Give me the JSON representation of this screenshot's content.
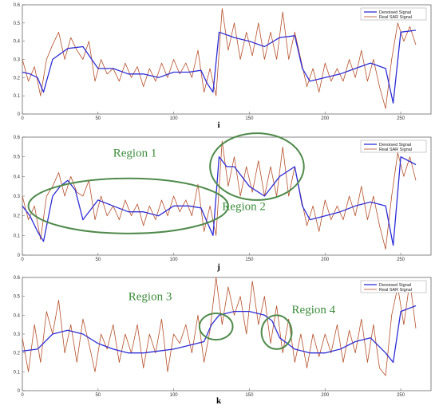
{
  "figure": {
    "colors": {
      "denoised": "#2e2ed8",
      "real": "#b5502a",
      "region": "#4e8a4a",
      "axis": "#666666",
      "background": "#ffffff"
    }
  },
  "chart_data": [
    {
      "type": "line",
      "panel_label": "i",
      "xlim": [
        0,
        270
      ],
      "ylim": [
        0,
        0.6
      ],
      "xticks": [
        "0",
        "50",
        "100",
        "150",
        "200",
        "250"
      ],
      "yticks": [
        "0",
        "0.1",
        "0.2",
        "0.3",
        "0.4",
        "0.5",
        "0.6"
      ],
      "legend": {
        "position": "top-right",
        "entries": [
          "Denoised Signal",
          "Real SAR Signal"
        ]
      },
      "grid": false,
      "series": [
        {
          "name": "Denoised Signal",
          "color": "#2e2ed8",
          "x": [
            0,
            5,
            10,
            14,
            20,
            30,
            40,
            50,
            60,
            70,
            80,
            90,
            100,
            110,
            118,
            122,
            126,
            130,
            140,
            150,
            160,
            170,
            180,
            185,
            190,
            200,
            210,
            220,
            230,
            240,
            245,
            250,
            260
          ],
          "y": [
            0.23,
            0.22,
            0.2,
            0.12,
            0.3,
            0.36,
            0.37,
            0.25,
            0.25,
            0.22,
            0.22,
            0.2,
            0.23,
            0.23,
            0.24,
            0.17,
            0.12,
            0.45,
            0.42,
            0.4,
            0.37,
            0.42,
            0.43,
            0.25,
            0.18,
            0.2,
            0.22,
            0.25,
            0.28,
            0.25,
            0.06,
            0.45,
            0.46
          ]
        },
        {
          "name": "Real SAR Signal",
          "color": "#b5502a",
          "x": [
            0,
            4,
            8,
            12,
            16,
            20,
            24,
            28,
            32,
            36,
            40,
            44,
            48,
            52,
            56,
            60,
            64,
            68,
            72,
            76,
            80,
            84,
            88,
            92,
            96,
            100,
            104,
            108,
            112,
            116,
            120,
            124,
            128,
            132,
            136,
            140,
            144,
            148,
            152,
            156,
            160,
            164,
            168,
            172,
            176,
            180,
            184,
            188,
            192,
            196,
            200,
            204,
            208,
            212,
            216,
            220,
            224,
            228,
            232,
            236,
            240,
            244,
            248,
            252,
            256,
            260
          ],
          "y": [
            0.3,
            0.18,
            0.26,
            0.1,
            0.3,
            0.38,
            0.45,
            0.3,
            0.42,
            0.35,
            0.3,
            0.4,
            0.18,
            0.3,
            0.22,
            0.25,
            0.18,
            0.28,
            0.2,
            0.26,
            0.15,
            0.25,
            0.18,
            0.28,
            0.2,
            0.3,
            0.22,
            0.28,
            0.2,
            0.35,
            0.12,
            0.25,
            0.1,
            0.58,
            0.35,
            0.5,
            0.3,
            0.45,
            0.32,
            0.5,
            0.3,
            0.45,
            0.3,
            0.56,
            0.3,
            0.45,
            0.3,
            0.15,
            0.25,
            0.12,
            0.28,
            0.18,
            0.25,
            0.18,
            0.3,
            0.2,
            0.35,
            0.18,
            0.3,
            0.15,
            0.03,
            0.3,
            0.5,
            0.4,
            0.48,
            0.38
          ]
        }
      ],
      "regions": []
    },
    {
      "type": "line",
      "panel_label": "j",
      "xlim": [
        0,
        270
      ],
      "ylim": [
        0,
        0.6
      ],
      "xticks": [
        "0",
        "50",
        "100",
        "150",
        "200",
        "250"
      ],
      "yticks": [
        "0",
        "0.1",
        "0.2",
        "0.3",
        "0.4",
        "0.5",
        "0.6"
      ],
      "legend": {
        "position": "top-right",
        "entries": [
          "Denoised Signal",
          "Real SAR Signal"
        ]
      },
      "grid": false,
      "series": [
        {
          "name": "Denoised Signal",
          "color": "#2e2ed8",
          "x": [
            0,
            5,
            10,
            14,
            20,
            25,
            30,
            35,
            40,
            50,
            60,
            70,
            80,
            90,
            100,
            110,
            118,
            122,
            126,
            130,
            135,
            140,
            150,
            160,
            170,
            180,
            185,
            190,
            200,
            210,
            220,
            230,
            240,
            245,
            250,
            260
          ],
          "y": [
            0.25,
            0.2,
            0.12,
            0.07,
            0.3,
            0.35,
            0.38,
            0.33,
            0.18,
            0.28,
            0.25,
            0.22,
            0.22,
            0.2,
            0.25,
            0.25,
            0.24,
            0.17,
            0.1,
            0.5,
            0.45,
            0.45,
            0.35,
            0.3,
            0.4,
            0.45,
            0.25,
            0.18,
            0.2,
            0.22,
            0.25,
            0.27,
            0.25,
            0.05,
            0.5,
            0.46
          ]
        },
        {
          "name": "Real SAR Signal",
          "color": "#b5502a",
          "x": [
            0,
            4,
            8,
            12,
            16,
            20,
            24,
            28,
            32,
            36,
            40,
            44,
            48,
            52,
            56,
            60,
            64,
            68,
            72,
            76,
            80,
            84,
            88,
            92,
            96,
            100,
            104,
            108,
            112,
            116,
            120,
            124,
            128,
            132,
            136,
            140,
            144,
            148,
            152,
            156,
            160,
            164,
            168,
            172,
            176,
            180,
            184,
            188,
            192,
            196,
            200,
            204,
            208,
            212,
            216,
            220,
            224,
            228,
            232,
            236,
            240,
            244,
            248,
            252,
            256,
            260
          ],
          "y": [
            0.3,
            0.18,
            0.25,
            0.08,
            0.3,
            0.35,
            0.42,
            0.3,
            0.4,
            0.32,
            0.3,
            0.38,
            0.18,
            0.3,
            0.2,
            0.25,
            0.18,
            0.28,
            0.2,
            0.26,
            0.15,
            0.25,
            0.18,
            0.28,
            0.2,
            0.3,
            0.22,
            0.28,
            0.2,
            0.36,
            0.12,
            0.25,
            0.1,
            0.58,
            0.35,
            0.5,
            0.3,
            0.45,
            0.32,
            0.48,
            0.3,
            0.45,
            0.3,
            0.55,
            0.3,
            0.45,
            0.3,
            0.15,
            0.25,
            0.12,
            0.28,
            0.18,
            0.25,
            0.18,
            0.3,
            0.2,
            0.35,
            0.18,
            0.3,
            0.15,
            0.03,
            0.3,
            0.52,
            0.4,
            0.5,
            0.38
          ]
        }
      ],
      "regions": [
        {
          "label": "Region 1",
          "cx": 70,
          "cy": 0.25,
          "rx": 66,
          "ry": 0.14
        },
        {
          "label": "Region 2",
          "cx": 155,
          "cy": 0.45,
          "rx": 31,
          "ry": 0.17
        }
      ]
    },
    {
      "type": "line",
      "panel_label": "k",
      "xlim": [
        0,
        270
      ],
      "ylim": [
        0,
        0.6
      ],
      "xticks": [
        "0",
        "50",
        "100",
        "150",
        "200",
        "250"
      ],
      "yticks": [
        "0",
        "0.1",
        "0.2",
        "0.3",
        "0.4",
        "0.5",
        "0.6"
      ],
      "legend": {
        "position": "top-right",
        "entries": [
          "Denoised Signal",
          "Real SAR Signal"
        ]
      },
      "grid": false,
      "series": [
        {
          "name": "Denoised Signal",
          "color": "#2e2ed8",
          "x": [
            0,
            10,
            20,
            30,
            40,
            50,
            60,
            70,
            80,
            90,
            100,
            110,
            120,
            125,
            130,
            140,
            150,
            160,
            165,
            170,
            180,
            190,
            200,
            210,
            220,
            230,
            240,
            245,
            250,
            260
          ],
          "y": [
            0.21,
            0.22,
            0.3,
            0.32,
            0.3,
            0.25,
            0.22,
            0.2,
            0.2,
            0.21,
            0.22,
            0.24,
            0.26,
            0.35,
            0.4,
            0.42,
            0.42,
            0.4,
            0.37,
            0.28,
            0.22,
            0.2,
            0.2,
            0.22,
            0.26,
            0.28,
            0.2,
            0.15,
            0.42,
            0.45
          ]
        },
        {
          "name": "Real SAR Signal",
          "color": "#b5502a",
          "x": [
            0,
            4,
            8,
            12,
            16,
            20,
            24,
            28,
            32,
            36,
            40,
            44,
            48,
            52,
            56,
            60,
            64,
            68,
            72,
            76,
            80,
            84,
            88,
            92,
            96,
            100,
            104,
            108,
            112,
            116,
            120,
            124,
            128,
            132,
            136,
            140,
            144,
            148,
            152,
            156,
            160,
            164,
            168,
            172,
            176,
            180,
            184,
            188,
            192,
            196,
            200,
            204,
            208,
            212,
            216,
            220,
            224,
            228,
            232,
            236,
            240,
            244,
            248,
            252,
            256,
            260
          ],
          "y": [
            0.28,
            0.1,
            0.35,
            0.15,
            0.42,
            0.3,
            0.48,
            0.2,
            0.35,
            0.15,
            0.38,
            0.25,
            0.1,
            0.3,
            0.22,
            0.35,
            0.15,
            0.3,
            0.2,
            0.35,
            0.12,
            0.3,
            0.2,
            0.38,
            0.1,
            0.3,
            0.25,
            0.35,
            0.2,
            0.4,
            0.15,
            0.32,
            0.6,
            0.35,
            0.55,
            0.4,
            0.5,
            0.3,
            0.58,
            0.35,
            0.5,
            0.25,
            0.45,
            0.2,
            0.38,
            0.15,
            0.3,
            0.12,
            0.3,
            0.18,
            0.3,
            0.2,
            0.35,
            0.15,
            0.32,
            0.2,
            0.38,
            0.15,
            0.35,
            0.12,
            0.08,
            0.4,
            0.55,
            0.35,
            0.58,
            0.33
          ]
        }
      ],
      "regions": [
        {
          "label": "Region 3",
          "cx": 128,
          "cy": 0.34,
          "rx": 11,
          "ry": 0.07
        },
        {
          "label": "Region 4",
          "cx": 168,
          "cy": 0.31,
          "rx": 10,
          "ry": 0.09
        }
      ]
    }
  ]
}
